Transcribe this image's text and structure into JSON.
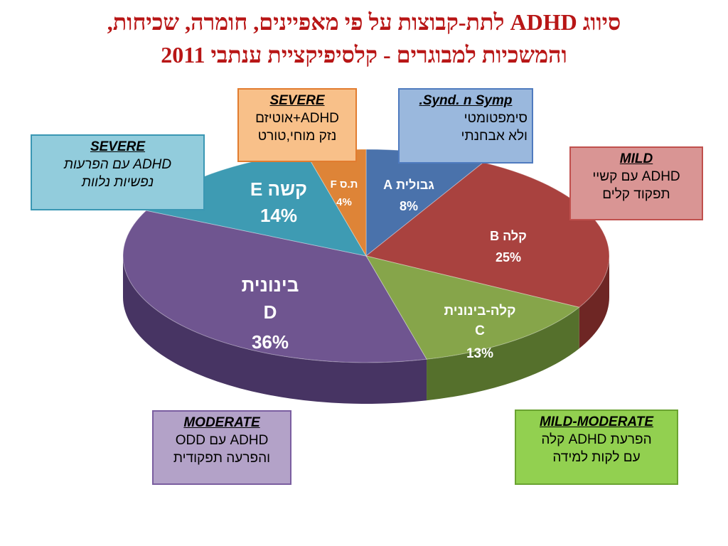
{
  "title": {
    "line1": "סיווג ADHD לתת-קבוצות על פי מאפיינים, חומרה, שכיחות,",
    "line2": "והמשכיות למבוגרים - קלסיפיקציית ענתבי 2011"
  },
  "chart_data": {
    "type": "pie",
    "style": "3d",
    "unit": "%",
    "slices": [
      {
        "letter": "A",
        "name": "גבולית",
        "value": 8,
        "label": "8%",
        "color": "#4a72ab",
        "side": "#2f4d78"
      },
      {
        "letter": "B",
        "name": "קלה",
        "value": 25,
        "label": "25%",
        "color": "#a9423f",
        "side": "#6e2624"
      },
      {
        "letter": "C",
        "name": "קלה-בינונית",
        "value": 13,
        "label": "13%",
        "color": "#86a54a",
        "side": "#55702c"
      },
      {
        "letter": "D",
        "name": "בינונית",
        "value": 36,
        "label": "36%",
        "color": "#6f5590",
        "side": "#473463"
      },
      {
        "letter": "E",
        "name": "קשה",
        "value": 14,
        "label": "14%",
        "color": "#3e9bb3",
        "side": "#24697c"
      },
      {
        "letter": "F",
        "name": "ת.ס",
        "value": 4,
        "label": "4%",
        "color": "#de8437",
        "side": "#99551c"
      }
    ]
  },
  "callouts": {
    "severe_top": {
      "heading": "SEVERE",
      "line1": "ADHD+אוטיזם",
      "line2": "נזק מוחי,טורט"
    },
    "synd": {
      "heading": "Synd. n Symp.",
      "line1": "סימפטומטי",
      "line2": "ולא אבחנתי"
    },
    "severe_left": {
      "heading": "SEVERE",
      "line1": "ADHD  עם הפרעות",
      "line2": "נפשיות נלוות"
    },
    "mild": {
      "heading": "MILD",
      "line1": "ADHD עם קשיי",
      "line2": "תפקוד קלים"
    },
    "moderate": {
      "heading": "MODERATE",
      "line1": "ADHD עם ODD",
      "line2": "והפרעה תפקודית"
    },
    "mild_moderate": {
      "heading": "MILD-MODERATE",
      "line1": "הפרעת ADHD קלה",
      "line2": "עם לקות למידה"
    }
  }
}
